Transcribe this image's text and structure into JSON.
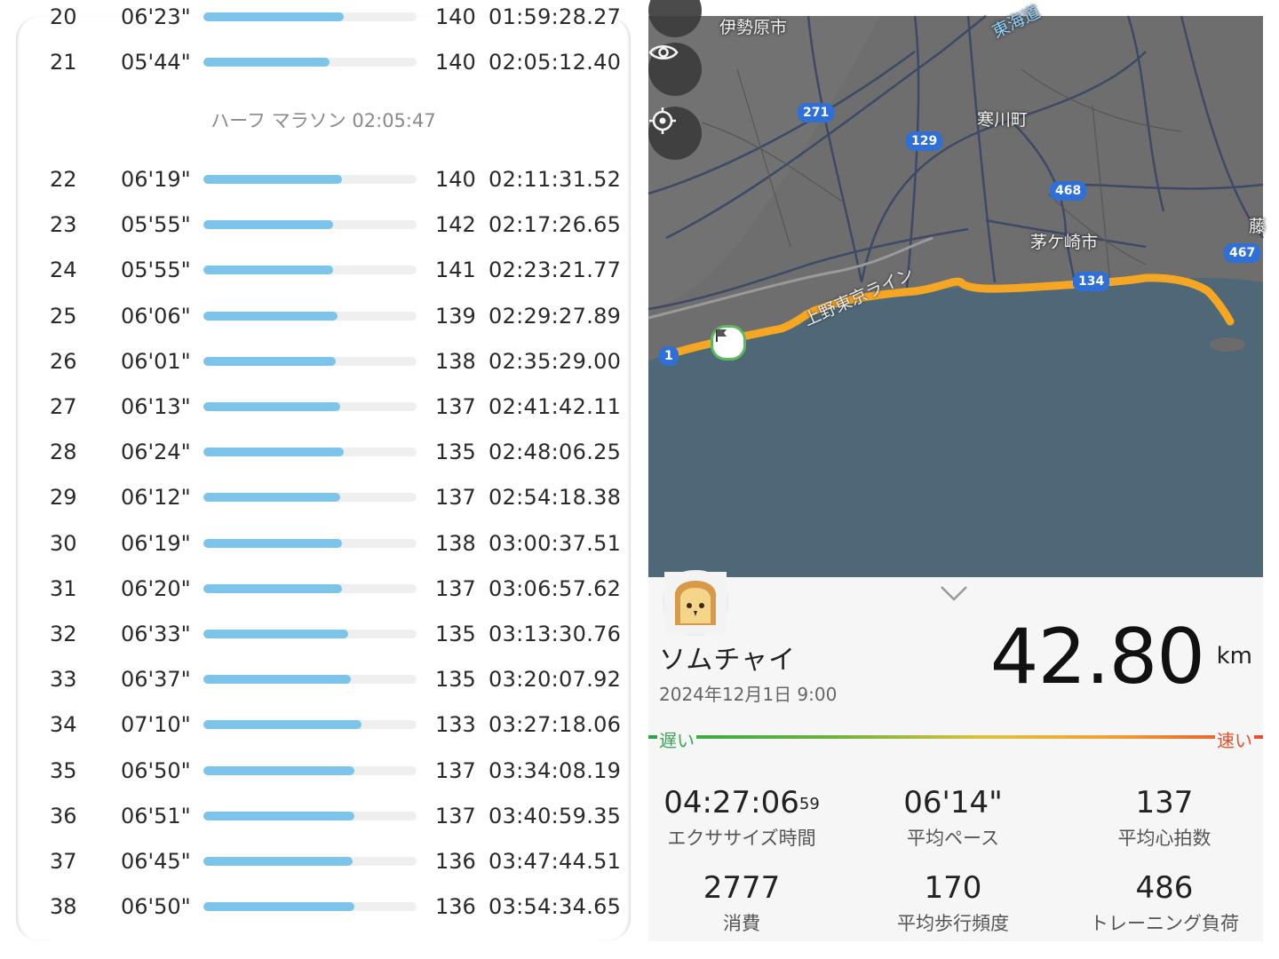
{
  "splits_panel": {
    "rows_before_half": [
      {
        "km": "20",
        "pace": "06'23\"",
        "fraction": 0.66,
        "hr": "140",
        "time": "01:59:28.27"
      },
      {
        "km": "21",
        "pace": "05'44\"",
        "fraction": 0.59,
        "hr": "140",
        "time": "02:05:12.40"
      }
    ],
    "half_marathon": {
      "label": "ハーフ マラソン",
      "time": "02:05:47"
    },
    "rows_after_half": [
      {
        "km": "22",
        "pace": "06'19\"",
        "fraction": 0.65,
        "hr": "140",
        "time": "02:11:31.52"
      },
      {
        "km": "23",
        "pace": "05'55\"",
        "fraction": 0.61,
        "hr": "142",
        "time": "02:17:26.65"
      },
      {
        "km": "24",
        "pace": "05'55\"",
        "fraction": 0.61,
        "hr": "141",
        "time": "02:23:21.77"
      },
      {
        "km": "25",
        "pace": "06'06\"",
        "fraction": 0.63,
        "hr": "139",
        "time": "02:29:27.89"
      },
      {
        "km": "26",
        "pace": "06'01\"",
        "fraction": 0.62,
        "hr": "138",
        "time": "02:35:29.00"
      },
      {
        "km": "27",
        "pace": "06'13\"",
        "fraction": 0.64,
        "hr": "137",
        "time": "02:41:42.11"
      },
      {
        "km": "28",
        "pace": "06'24\"",
        "fraction": 0.66,
        "hr": "135",
        "time": "02:48:06.25"
      },
      {
        "km": "29",
        "pace": "06'12\"",
        "fraction": 0.64,
        "hr": "137",
        "time": "02:54:18.38"
      },
      {
        "km": "30",
        "pace": "06'19\"",
        "fraction": 0.65,
        "hr": "138",
        "time": "03:00:37.51"
      },
      {
        "km": "31",
        "pace": "06'20\"",
        "fraction": 0.65,
        "hr": "137",
        "time": "03:06:57.62"
      },
      {
        "km": "32",
        "pace": "06'33\"",
        "fraction": 0.68,
        "hr": "135",
        "time": "03:13:30.76"
      },
      {
        "km": "33",
        "pace": "06'37\"",
        "fraction": 0.69,
        "hr": "135",
        "time": "03:20:07.92"
      },
      {
        "km": "34",
        "pace": "07'10\"",
        "fraction": 0.74,
        "hr": "133",
        "time": "03:27:18.06"
      },
      {
        "km": "35",
        "pace": "06'50\"",
        "fraction": 0.71,
        "hr": "137",
        "time": "03:34:08.19"
      },
      {
        "km": "36",
        "pace": "06'51\"",
        "fraction": 0.71,
        "hr": "137",
        "time": "03:40:59.35"
      },
      {
        "km": "37",
        "pace": "06'45\"",
        "fraction": 0.7,
        "hr": "136",
        "time": "03:47:44.51"
      },
      {
        "km": "38",
        "pace": "06'50\"",
        "fraction": 0.71,
        "hr": "136",
        "time": "03:54:34.65"
      }
    ]
  },
  "map": {
    "places": {
      "isehara": "伊勢原市",
      "samukawa": "寒川町",
      "chigasaki": "茅ケ崎市",
      "partial_right": "藤",
      "tokaido": "東海道",
      "route_label": "上野東京ライン"
    },
    "road_shields": {
      "r271": "271",
      "r129": "129",
      "r468": "468",
      "r467": "467",
      "r134": "134",
      "r1": "1"
    },
    "icons": {
      "visibility": "eye-icon",
      "locate": "locate-icon",
      "start": "start-flag-icon"
    },
    "colors": {
      "sea": "#4f6878",
      "land": "#6d6d6d",
      "route": "#f5a623"
    }
  },
  "summary": {
    "user_name": "ソムチャイ",
    "date": "2024年12月1日 9:00",
    "distance": "42.80",
    "distance_unit": "km",
    "pace_scale": {
      "slow": "遅い",
      "fast": "速い"
    },
    "stats": [
      {
        "value": "04:27:06",
        "value_sup": "59",
        "label": "エクササイズ時間"
      },
      {
        "value": "06'14\"",
        "value_sup": "",
        "label": "平均ペース"
      },
      {
        "value": "137",
        "value_sup": "",
        "label": "平均心拍数"
      },
      {
        "value": "2777",
        "value_sup": "",
        "label": "消費"
      },
      {
        "value": "170",
        "value_sup": "",
        "label": "平均歩行頻度"
      },
      {
        "value": "486",
        "value_sup": "",
        "label": "トレーニング負荷"
      }
    ]
  }
}
